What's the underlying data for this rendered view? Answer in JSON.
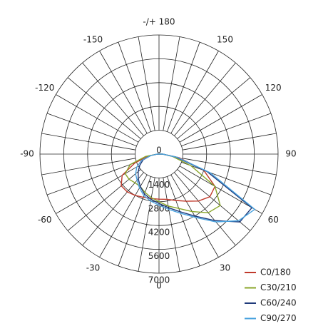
{
  "chart_data": {
    "type": "polar",
    "rlim": [
      0,
      7000
    ],
    "rticks": [
      0,
      1400,
      2800,
      4200,
      5600,
      7000
    ],
    "theta_ticks": [
      {
        "value": 180,
        "label": "-/+ 180"
      },
      150,
      120,
      90,
      60,
      30,
      0,
      -30,
      -60,
      -90,
      -120,
      -150
    ],
    "x": [
      -90,
      -80,
      -70,
      -60,
      -50,
      -40,
      -30,
      -20,
      -10,
      0,
      10,
      20,
      30,
      40,
      50,
      60,
      70,
      80,
      90
    ],
    "series": [
      {
        "name": "C0/180",
        "color": "#c0392b",
        "values": [
          100,
          600,
          1500,
          2500,
          2900,
          2900,
          2800,
          2700,
          2650,
          2650,
          2700,
          2900,
          3200,
          3600,
          3900,
          3800,
          2800,
          1200,
          200
        ]
      },
      {
        "name": "C30/210",
        "color": "#8aa62a",
        "values": [
          100,
          800,
          1800,
          2300,
          2300,
          2200,
          2200,
          2400,
          2600,
          2800,
          3100,
          3400,
          3900,
          4500,
          4700,
          3800,
          2000,
          800,
          200
        ]
      },
      {
        "name": "C60/240",
        "color": "#1f3a7a",
        "values": [
          100,
          500,
          1000,
          1300,
          1600,
          1900,
          2200,
          2500,
          2700,
          2900,
          3200,
          3600,
          4200,
          5100,
          6200,
          6300,
          3000,
          1000,
          200
        ]
      },
      {
        "name": "C90/270",
        "color": "#4aa3df",
        "values": [
          100,
          500,
          1100,
          1500,
          1800,
          2000,
          2300,
          2600,
          2800,
          3000,
          3300,
          3700,
          4300,
          5200,
          6100,
          6500,
          3200,
          1100,
          200
        ]
      }
    ],
    "legend": "bottom-right"
  }
}
